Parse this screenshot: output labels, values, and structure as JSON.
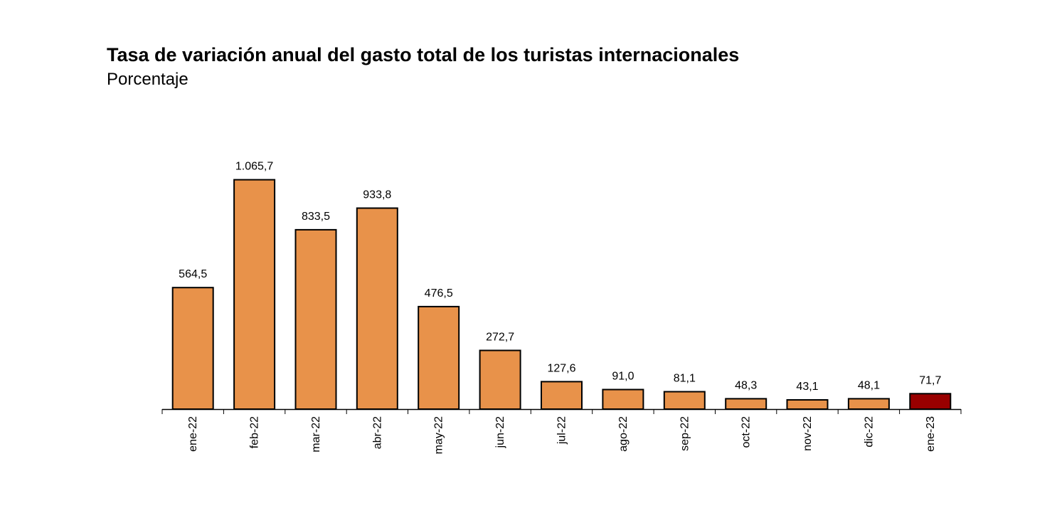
{
  "chart_data": {
    "type": "bar",
    "title": "Tasa de variación anual del gasto total de los turistas internacionales",
    "subtitle": "Porcentaje",
    "xlabel": "",
    "ylabel": "",
    "categories": [
      "ene-22",
      "feb-22",
      "mar-22",
      "abr-22",
      "may-22",
      "jun-22",
      "jul-22",
      "ago-22",
      "sep-22",
      "oct-22",
      "nov-22",
      "dic-22",
      "ene-23"
    ],
    "values": [
      564.5,
      1065.7,
      833.5,
      933.8,
      476.5,
      272.7,
      127.6,
      91.0,
      81.1,
      48.3,
      43.1,
      48.1,
      71.7
    ],
    "value_labels": [
      "564,5",
      "1.065,7",
      "833,5",
      "933,8",
      "476,5",
      "272,7",
      "127,6",
      "91,0",
      "81,1",
      "48,3",
      "43,1",
      "48,1",
      "71,7"
    ],
    "highlight_index": 12,
    "colors": {
      "bar": "#E8924A",
      "highlight": "#990000",
      "outline": "#000000"
    },
    "ylim": [
      0,
      1100
    ],
    "grid": false,
    "legend": "none"
  }
}
